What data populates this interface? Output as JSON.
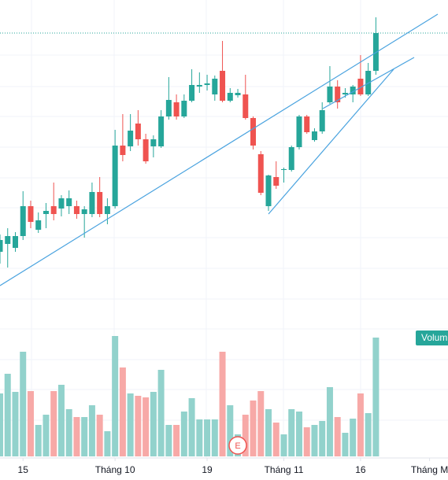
{
  "chart_data": {
    "type": "candlestick",
    "open": [
      280,
      290,
      285,
      300,
      338,
      308,
      328,
      338,
      335,
      338,
      338,
      328,
      328,
      356,
      328,
      338,
      415,
      414,
      443,
      423,
      414,
      414,
      452,
      470,
      452,
      472,
      490,
      492,
      480,
      510,
      472,
      479,
      480,
      450,
      404,
      338,
      375,
      384,
      384,
      413,
      452,
      422,
      433,
      470,
      490,
      480,
      480,
      500,
      480,
      510
    ],
    "high": [
      302,
      310,
      305,
      357,
      345,
      330,
      342,
      368,
      352,
      358,
      345,
      338,
      368,
      375,
      348,
      435,
      455,
      455,
      460,
      430,
      428,
      460,
      502,
      480,
      480,
      512,
      508,
      505,
      504,
      548,
      488,
      487,
      505,
      452,
      408,
      378,
      395,
      387,
      415,
      454,
      454,
      437,
      470,
      516,
      498,
      488,
      492,
      530,
      520,
      578
    ],
    "low": [
      265,
      260,
      280,
      295,
      310,
      304,
      310,
      320,
      325,
      328,
      322,
      298,
      324,
      324,
      315,
      335,
      395,
      408,
      415,
      392,
      400,
      412,
      448,
      448,
      450,
      470,
      482,
      485,
      472,
      470,
      470,
      476,
      448,
      410,
      352,
      332,
      360,
      368,
      382,
      410,
      430,
      420,
      430,
      468,
      462,
      476,
      470,
      478,
      478,
      505
    ],
    "close": [
      295,
      300,
      300,
      338,
      318,
      320,
      332,
      328,
      348,
      348,
      328,
      334,
      356,
      328,
      338,
      415,
      403,
      434,
      423,
      395,
      423,
      452,
      473,
      452,
      472,
      492,
      492,
      494,
      500,
      472,
      482,
      482,
      450,
      415,
      355,
      377,
      364,
      385,
      413,
      452,
      432,
      433,
      460,
      490,
      470,
      482,
      490,
      480,
      510,
      558
    ],
    "volume": [
      80,
      105,
      82,
      133,
      83,
      40,
      53,
      83,
      91,
      60,
      50,
      50,
      65,
      53,
      32,
      153,
      113,
      80,
      77,
      75,
      82,
      110,
      40,
      40,
      57,
      74,
      47,
      47,
      47,
      133,
      65,
      28,
      53,
      71,
      83,
      60,
      43,
      28,
      60,
      57,
      37,
      40,
      45,
      88,
      50,
      30,
      48,
      80,
      55,
      151
    ],
    "up_color": "#26a69a",
    "down_color": "#ef5350",
    "up_volume_color": "#92d2cc",
    "down_volume_color": "#f7a9a7",
    "ylim": [
      190,
      600
    ],
    "volume_lim": [
      0,
      180
    ],
    "xlim": [
      0,
      58.4
    ],
    "xticks": [
      {
        "value": 3,
        "label": "15"
      },
      {
        "value": 15,
        "label": "Tháng 10"
      },
      {
        "value": 27,
        "label": "19"
      },
      {
        "value": 37,
        "label": "Tháng 11"
      },
      {
        "value": 47,
        "label": "16"
      },
      {
        "value": 56,
        "label": "Tháng M"
      }
    ],
    "volume_label": "Volum",
    "event_label": "E"
  }
}
